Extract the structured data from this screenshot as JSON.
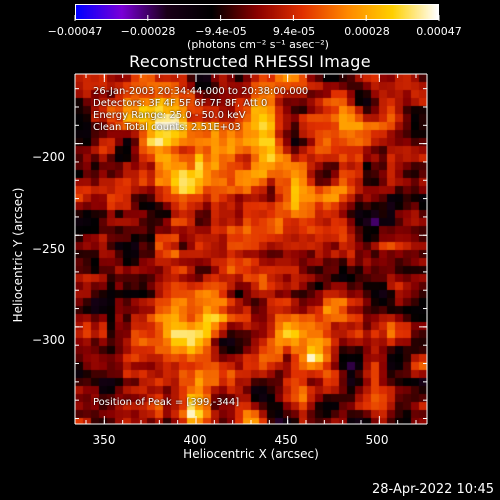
{
  "colorbar": {
    "min": -0.00047,
    "max": 0.00047,
    "tick_labels": [
      "-0.00047",
      "-0.00028",
      "-9.4e-05",
      "9.4e-05",
      "0.00028",
      "0.00047"
    ],
    "unit_label": "(photons cm⁻² s⁻¹ asec⁻²)",
    "colors": [
      "#0000ff",
      "#7a00d8",
      "#1a0018",
      "#000000",
      "#8a0000",
      "#e03000",
      "#ff8800",
      "#ffd000",
      "#ffffff"
    ]
  },
  "chart_data": {
    "type": "heatmap",
    "title": "Reconstructed RHESSI Image",
    "xlabel": "Heliocentric X (arcsec)",
    "ylabel": "Heliocentric Y (arcsec)",
    "xlim": [
      334,
      526
    ],
    "ylim": [
      -353,
      -162
    ],
    "x_ticks": [
      350,
      400,
      450,
      500
    ],
    "y_ticks": [
      -200,
      -250,
      -300
    ],
    "x_tick_labels": [
      "350",
      "400",
      "450",
      "500"
    ],
    "y_tick_labels": [
      "-200",
      "-250",
      "-300"
    ],
    "annotations": [
      "26-Jan-2003 20:34:44.000 to 20:38:00.000",
      "Detectors: 3F 4F 5F 6F 7F 8F, Att 0",
      "Energy Range: 25.0 - 50.0 keV",
      "Clean     Total counts: 2.51E+03"
    ],
    "peak_label": "Position of Peak = [399,-344]",
    "peak": [
      399,
      -344
    ]
  },
  "footer": {
    "date": "28-Apr-2022 10:45"
  }
}
